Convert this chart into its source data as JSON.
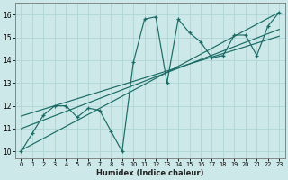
{
  "xlabel": "Humidex (Indice chaleur)",
  "bg_color": "#cce8e8",
  "grid_color": "#b0d4d4",
  "line_color": "#1a6b65",
  "xlim": [
    -0.5,
    23.5
  ],
  "ylim": [
    9.7,
    16.5
  ],
  "xticks": [
    0,
    1,
    2,
    3,
    4,
    5,
    6,
    7,
    8,
    9,
    10,
    11,
    12,
    13,
    14,
    15,
    16,
    17,
    18,
    19,
    20,
    21,
    22,
    23
  ],
  "yticks": [
    10,
    11,
    12,
    13,
    14,
    15,
    16
  ],
  "scatter_x": [
    0,
    1,
    2,
    3,
    4,
    5,
    6,
    7,
    8,
    9,
    10,
    11,
    12,
    13,
    14,
    15,
    16,
    17,
    18,
    19,
    20,
    21,
    22,
    23
  ],
  "scatter_y": [
    10.0,
    10.8,
    11.6,
    12.0,
    12.0,
    11.5,
    11.9,
    11.8,
    10.9,
    10.0,
    13.9,
    15.8,
    15.9,
    13.0,
    15.8,
    15.2,
    14.8,
    14.1,
    14.2,
    15.1,
    15.1,
    14.2,
    15.5,
    16.1
  ],
  "line1_x": [
    0,
    23
  ],
  "line1_y": [
    10.05,
    16.1
  ],
  "line2_x": [
    0,
    23
  ],
  "line2_y": [
    11.0,
    15.35
  ],
  "line3_x": [
    0,
    23
  ],
  "line3_y": [
    11.55,
    15.05
  ]
}
